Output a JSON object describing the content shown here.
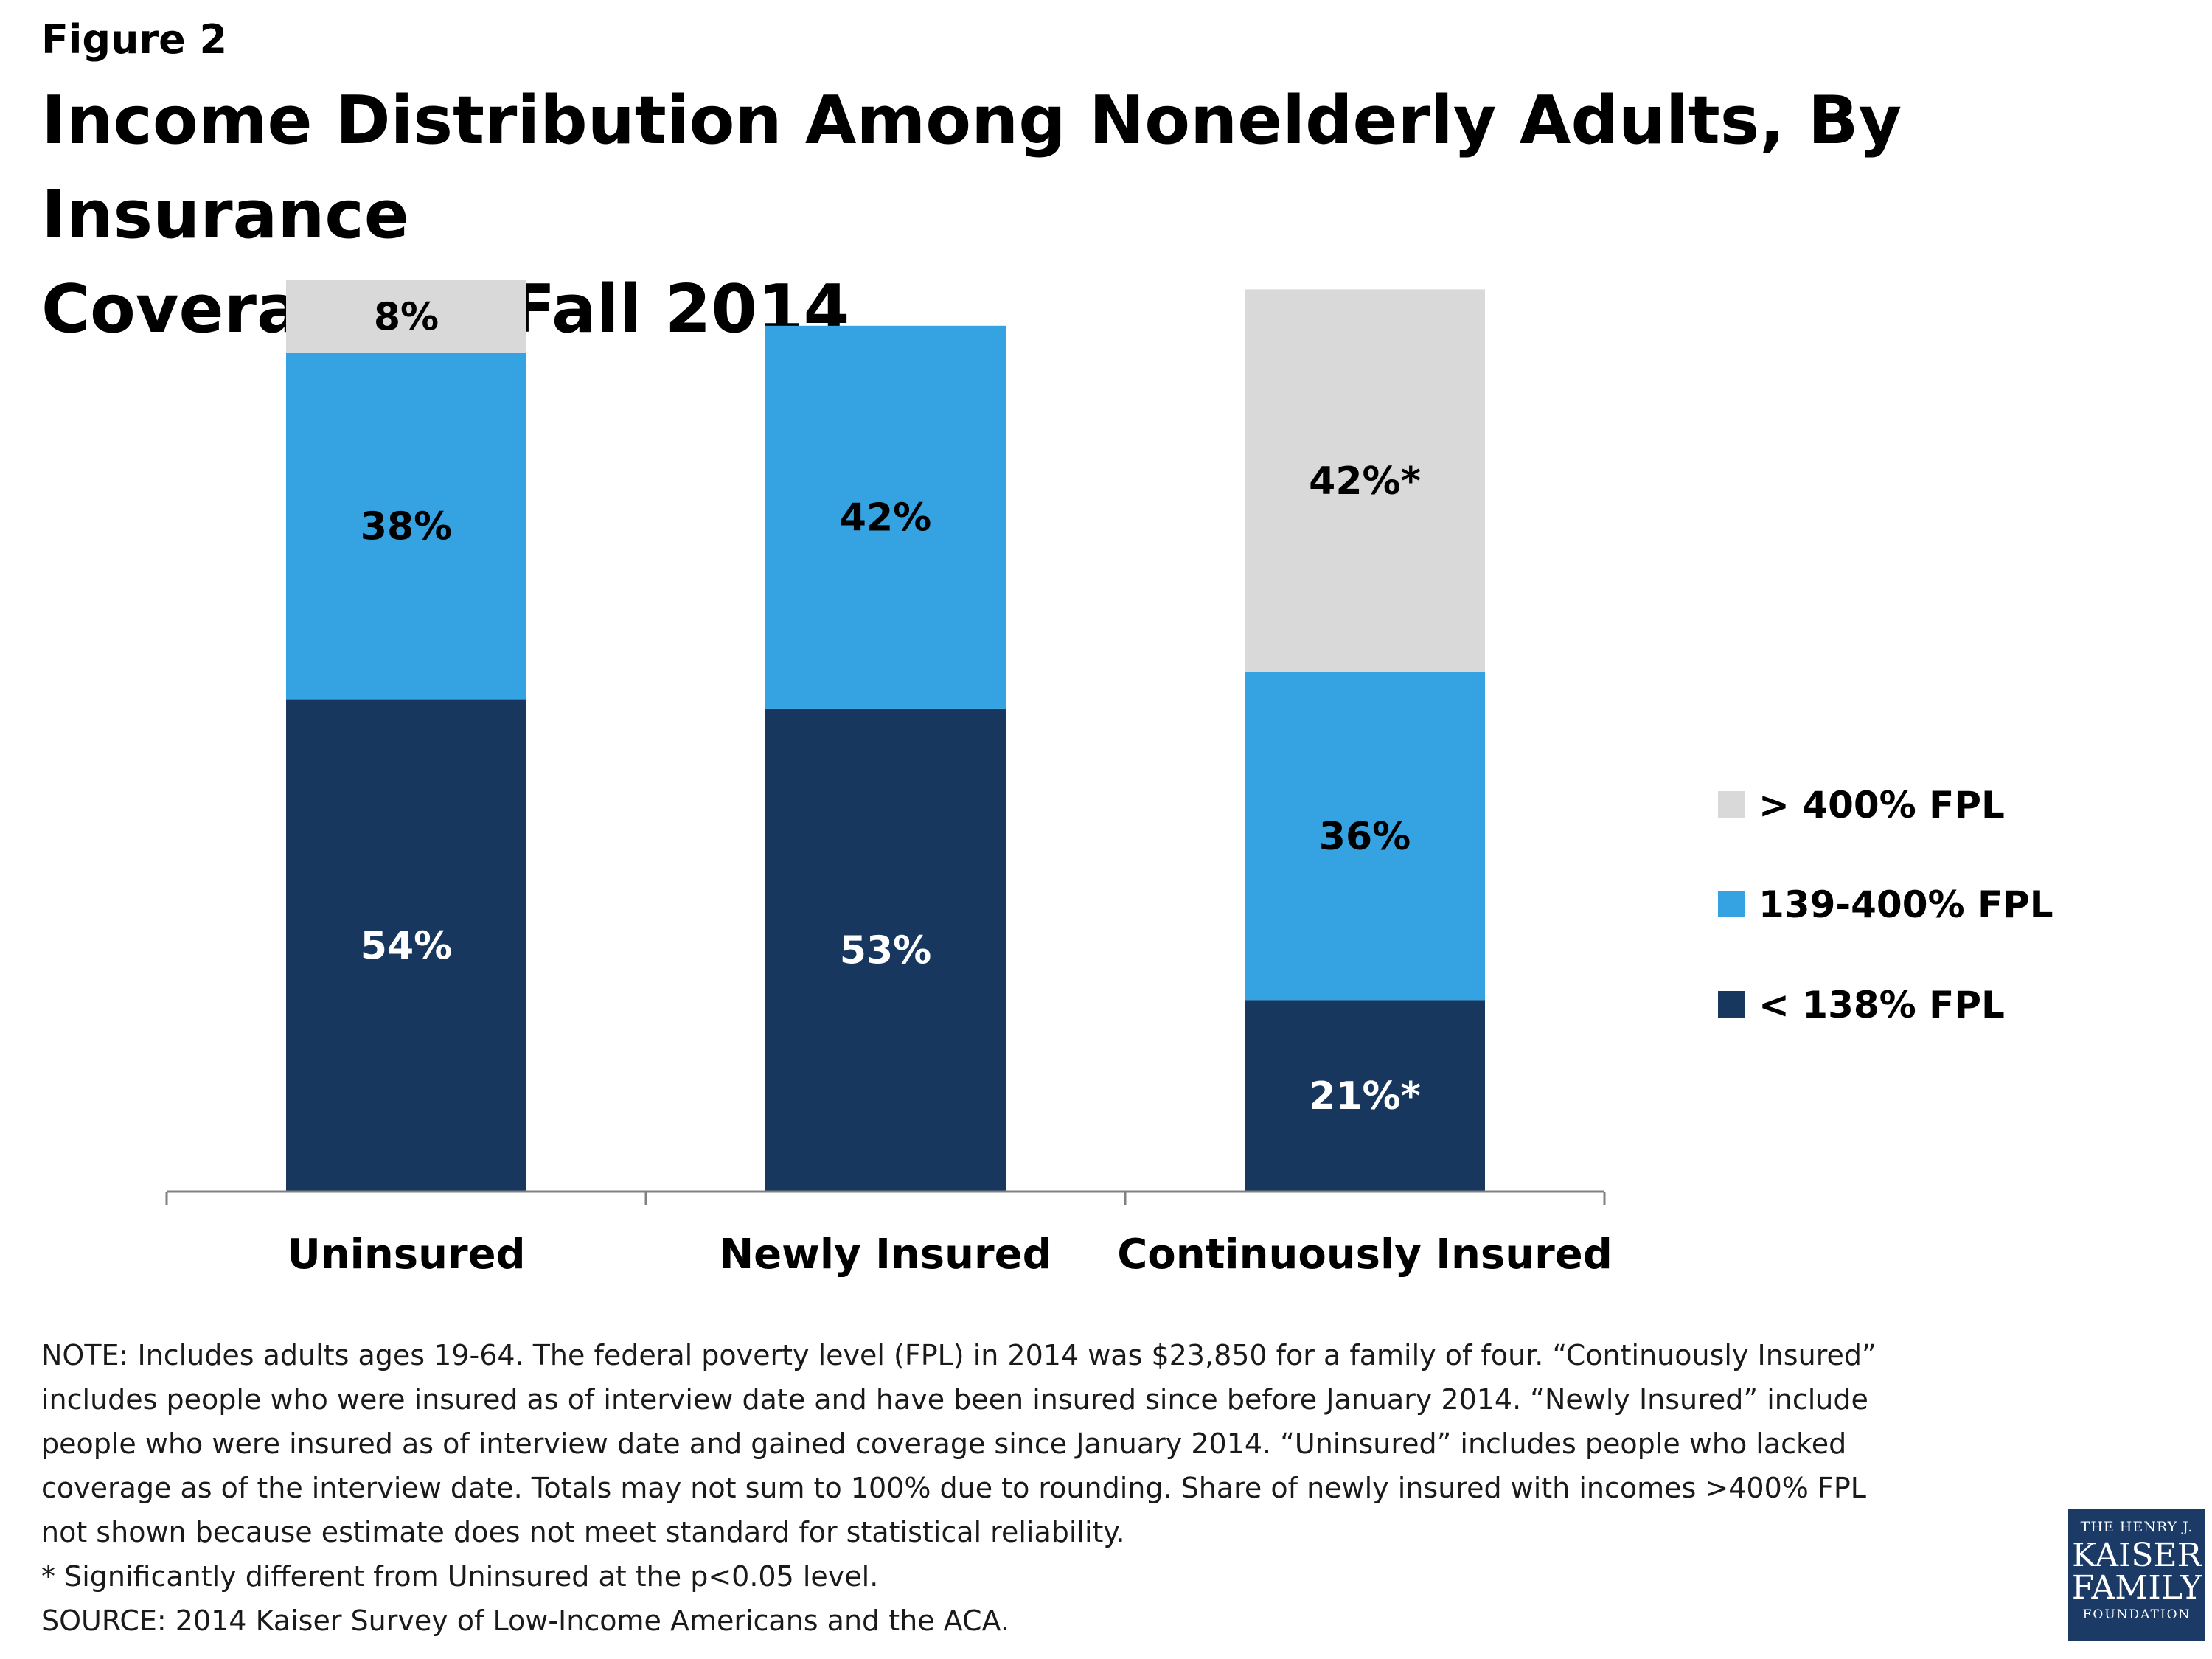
{
  "figure_label": "Figure 2",
  "title_line1": "Income Distribution Among Nonelderly Adults, By Insurance",
  "title_line2": "Coverage in Fall 2014",
  "colors": {
    "low_income": "#17375e",
    "mid_income": "#35a3e2",
    "high_income": "#d9d9d9",
    "axis": "#808080"
  },
  "chart_data": {
    "type": "bar",
    "stacked": true,
    "categories": [
      "Uninsured",
      "Newly Insured",
      "Continuously Insured"
    ],
    "series": [
      {
        "name": "< 138% FPL",
        "values": [
          54,
          53,
          21
        ],
        "labels": [
          "54%",
          "53%",
          "21%*"
        ],
        "color": "#17375e",
        "label_color": "#ffffff"
      },
      {
        "name": "139-400% FPL",
        "values": [
          38,
          42,
          36
        ],
        "labels": [
          "38%",
          "42%",
          "36%"
        ],
        "color": "#35a3e2",
        "label_color": "#000000"
      },
      {
        "name": "> 400% FPL",
        "values": [
          8,
          null,
          42
        ],
        "labels": [
          "8%",
          "",
          "42%*"
        ],
        "color": "#d9d9d9",
        "label_color": "#000000"
      }
    ],
    "ylim": [
      0,
      100
    ],
    "legend_position": "right",
    "legend_order": [
      "> 400% FPL",
      "139-400% FPL",
      "< 138% FPL"
    ],
    "grid": false
  },
  "notes": [
    "NOTE: Includes adults ages 19-64. The federal poverty level (FPL) in 2014 was $23,850 for a family of four. “Continuously Insured”",
    "includes people who were insured as of interview date and have been insured since before January 2014. “Newly Insured” include",
    "people who were insured as of interview date and gained coverage since January 2014. “Uninsured” includes people who lacked",
    "coverage as of the interview date. Totals may not sum to 100% due to rounding. Share of newly insured with incomes >400% FPL",
    "not shown because estimate does not meet standard for statistical reliability.",
    "* Significantly different from Uninsured at the p<0.05 level.",
    "SOURCE: 2014 Kaiser Survey of Low-Income Americans and the ACA."
  ],
  "logo": {
    "line1": "THE HENRY J.",
    "line2": "KAISER",
    "line3": "FAMILY",
    "line4": "FOUNDATION"
  }
}
